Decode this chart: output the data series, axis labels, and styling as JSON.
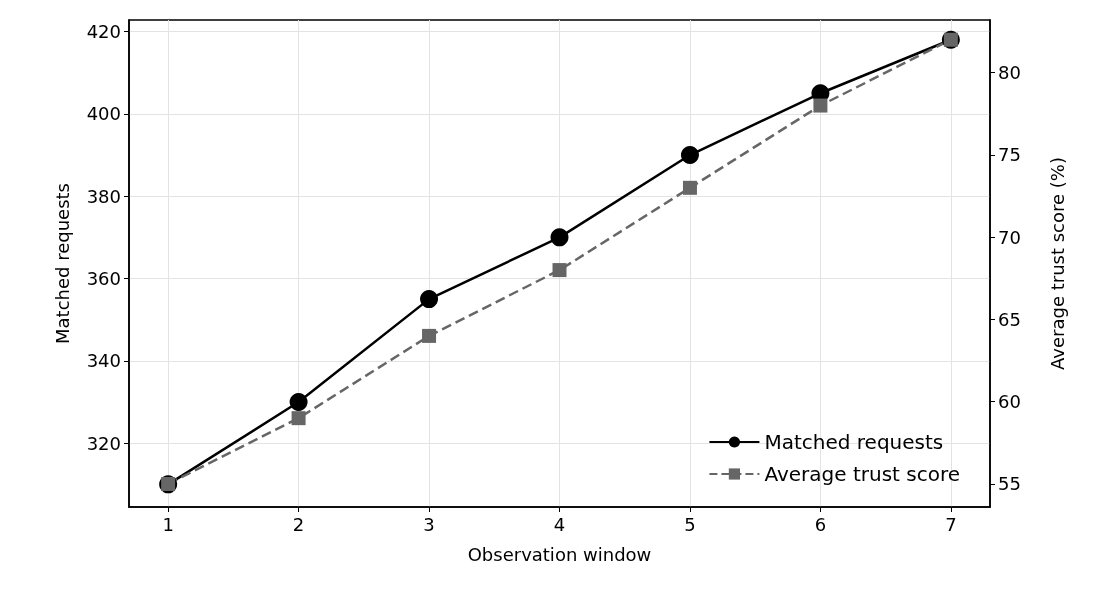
{
  "chart_data": {
    "type": "line",
    "xlabel": "Observation window",
    "ylabel": "Matched requests",
    "y2label": "Average trust score (%)",
    "x": [
      1,
      2,
      3,
      4,
      5,
      6,
      7
    ],
    "xlim": [
      0.7,
      7.3
    ],
    "xticks": [
      1,
      2,
      3,
      4,
      5,
      6,
      7
    ],
    "ylim": [
      304.5,
      422.8
    ],
    "yticks": [
      320,
      340,
      360,
      380,
      400,
      420
    ],
    "y2lim": [
      53.6,
      83.2
    ],
    "y2ticks": [
      55,
      60,
      65,
      70,
      75,
      80
    ],
    "series": [
      {
        "name": "Matched requests",
        "color": "#000000",
        "marker": "circle",
        "line_style": "solid",
        "values": [
          310,
          330,
          355,
          370,
          390,
          405,
          418
        ]
      },
      {
        "name": "Average trust score",
        "color": "#666666",
        "marker": "square",
        "line_style": "dashed",
        "axis": "y2",
        "values": [
          55,
          59,
          64,
          68,
          73,
          78,
          82
        ]
      }
    ],
    "grid": true,
    "legend": "bottom right"
  }
}
